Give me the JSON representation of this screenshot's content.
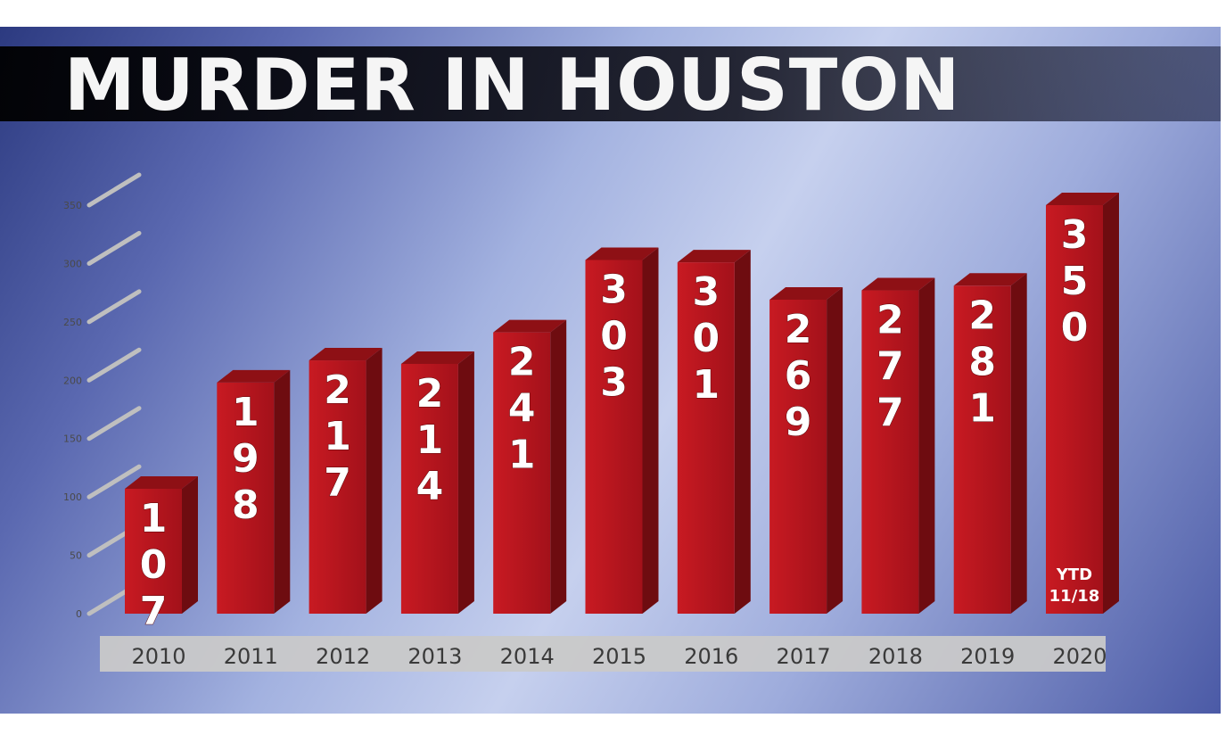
{
  "chart_data": {
    "type": "bar",
    "title": "MURDER IN HOUSTON",
    "categories": [
      "2010",
      "2011",
      "2012",
      "2013",
      "2014",
      "2015",
      "2016",
      "2017",
      "2018",
      "2019",
      "2020"
    ],
    "values": [
      107,
      198,
      217,
      214,
      241,
      303,
      301,
      269,
      277,
      281,
      350
    ],
    "value_labels": [
      "107",
      "198",
      "217",
      "214",
      "241",
      "303",
      "301",
      "269",
      "277",
      "281",
      "350"
    ],
    "annotation": {
      "category": "2020",
      "lines": [
        "YTD",
        "11/18"
      ]
    },
    "ylim": [
      0,
      350
    ],
    "yticks": [
      "0",
      "50",
      "100",
      "150",
      "200",
      "250",
      "300",
      "350"
    ],
    "ytick_values": [
      0,
      50,
      100,
      150,
      200,
      250,
      300,
      350
    ],
    "grid": true,
    "bar_color": "#b4141b",
    "bar_side_color": "#6e0c10",
    "bar_top_color": "#8e1015"
  }
}
